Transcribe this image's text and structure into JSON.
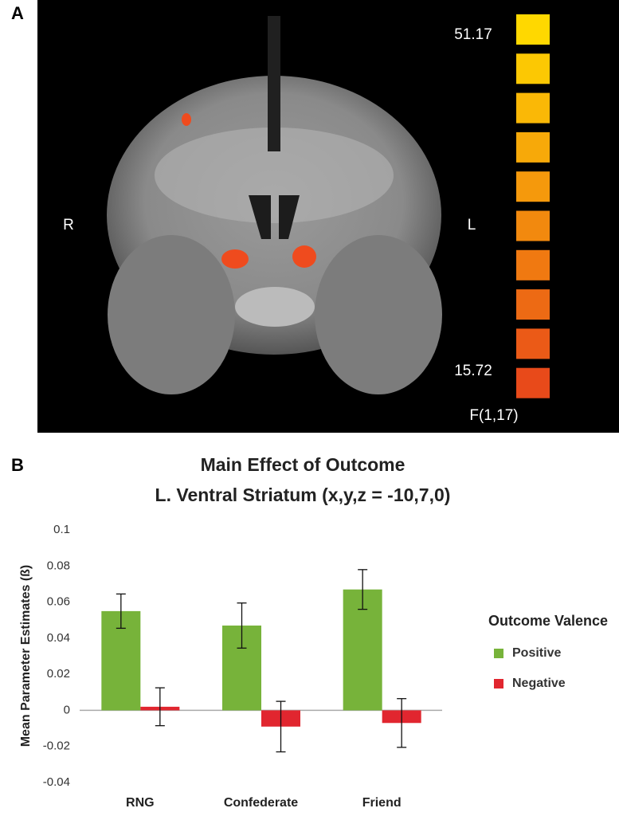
{
  "panel_a": {
    "label": "A",
    "left_marker": "R",
    "right_marker": "L",
    "scale_max": "51.17",
    "scale_min": "15.72",
    "scale_unit": "F(1,17)"
  },
  "panel_b_label": "B",
  "chart_data": {
    "type": "bar",
    "title": "Main Effect of Outcome",
    "subtitle": "L. Ventral Striatum (x,y,z = -10,7,0)",
    "y_label": "Mean Parameter Estimates (ß)",
    "categories": [
      "RNG",
      "Confederate",
      "Friend"
    ],
    "series": [
      {
        "name": "Positive",
        "color": "#77b33a",
        "values": [
          0.055,
          0.047,
          0.067
        ],
        "errors": [
          0.0095,
          0.0125,
          0.011
        ]
      },
      {
        "name": "Negative",
        "color": "#e1262f",
        "values": [
          0.002,
          -0.009,
          -0.007
        ],
        "errors": [
          0.0105,
          0.014,
          0.0135
        ]
      }
    ],
    "ylim": [
      -0.04,
      0.1
    ],
    "yticks": [
      -0.04,
      -0.02,
      0,
      0.02,
      0.04,
      0.06,
      0.08,
      0.1
    ],
    "legend_title": "Outcome Valence",
    "legend_position": "right",
    "grid": false
  }
}
